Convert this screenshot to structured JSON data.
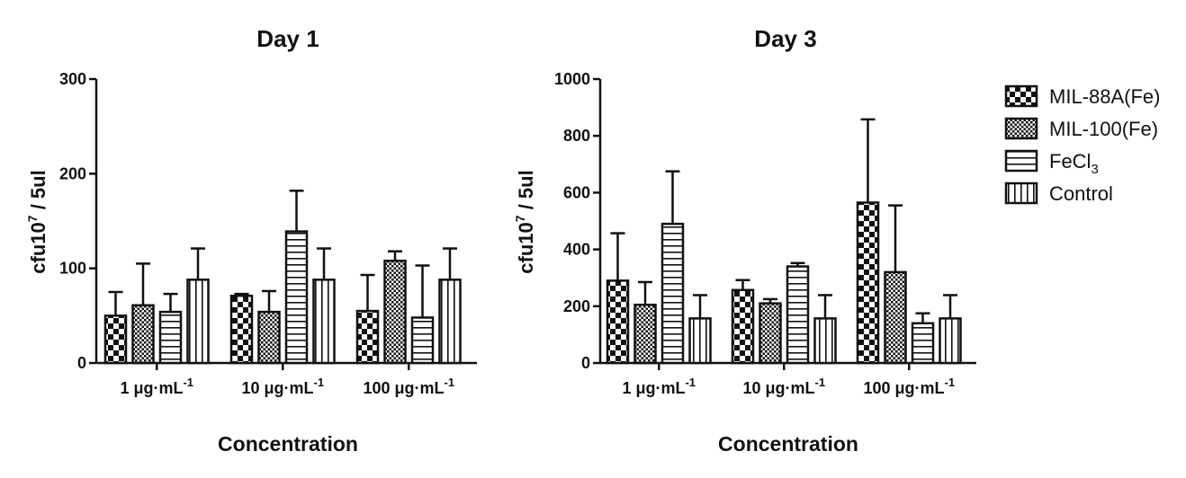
{
  "chart_data": [
    {
      "type": "bar",
      "title": "Day 1",
      "xlabel": "Concentration",
      "ylabel": "cfu10",
      "ylabel_sup": "7",
      "ylabel_suffix": " / 5ul",
      "ylim": [
        0,
        300
      ],
      "yticks": [
        0,
        100,
        200,
        300
      ],
      "categories": [
        {
          "label": "1 μg·mL",
          "sup": "-1"
        },
        {
          "label": "10 μg·mL",
          "sup": "-1"
        },
        {
          "label": "100 μg·mL",
          "sup": "-1"
        }
      ],
      "series": [
        {
          "name": "MIL-88A(Fe)",
          "values": [
            50,
            71,
            55
          ],
          "errors": [
            25,
            2,
            38
          ]
        },
        {
          "name": "MIL-100(Fe)",
          "values": [
            61,
            54,
            108
          ],
          "errors": [
            44,
            22,
            10
          ]
        },
        {
          "name": "FeCl3",
          "values": [
            54,
            139,
            48
          ],
          "errors": [
            19,
            43,
            55
          ]
        },
        {
          "name": "Control",
          "values": [
            88,
            88,
            88
          ],
          "errors": [
            33,
            33,
            33
          ]
        }
      ]
    },
    {
      "type": "bar",
      "title": "Day 3",
      "xlabel": "Concentration",
      "ylabel": "cfu10",
      "ylabel_sup": "7",
      "ylabel_suffix": " / 5ul",
      "ylim": [
        0,
        1000
      ],
      "yticks": [
        0,
        200,
        400,
        600,
        800,
        1000
      ],
      "categories": [
        {
          "label": "1 μg·mL",
          "sup": "-1"
        },
        {
          "label": "10 μg·mL",
          "sup": "-1"
        },
        {
          "label": "100 μg·mL",
          "sup": "-1"
        }
      ],
      "series": [
        {
          "name": "MIL-88A(Fe)",
          "values": [
            290,
            257,
            565
          ],
          "errors": [
            167,
            35,
            293
          ]
        },
        {
          "name": "MIL-100(Fe)",
          "values": [
            205,
            210,
            320
          ],
          "errors": [
            80,
            15,
            235
          ]
        },
        {
          "name": "FeCl3",
          "values": [
            490,
            340,
            140
          ],
          "errors": [
            185,
            12,
            35
          ]
        },
        {
          "name": "Control",
          "values": [
            157,
            157,
            157
          ],
          "errors": [
            82,
            82,
            82
          ]
        }
      ]
    }
  ],
  "legend": {
    "placement": "right",
    "items": [
      {
        "label": "MIL-88A(Fe)",
        "sub": "",
        "pattern": "checker"
      },
      {
        "label": "MIL-100(Fe)",
        "sub": "",
        "pattern": "dense-checker"
      },
      {
        "label": "FeCl",
        "sub": "3",
        "pattern": "horizontal"
      },
      {
        "label": "Control",
        "sub": "",
        "pattern": "vertical"
      }
    ]
  },
  "colors": {
    "ink": "#111111",
    "background": "#ffffff"
  }
}
